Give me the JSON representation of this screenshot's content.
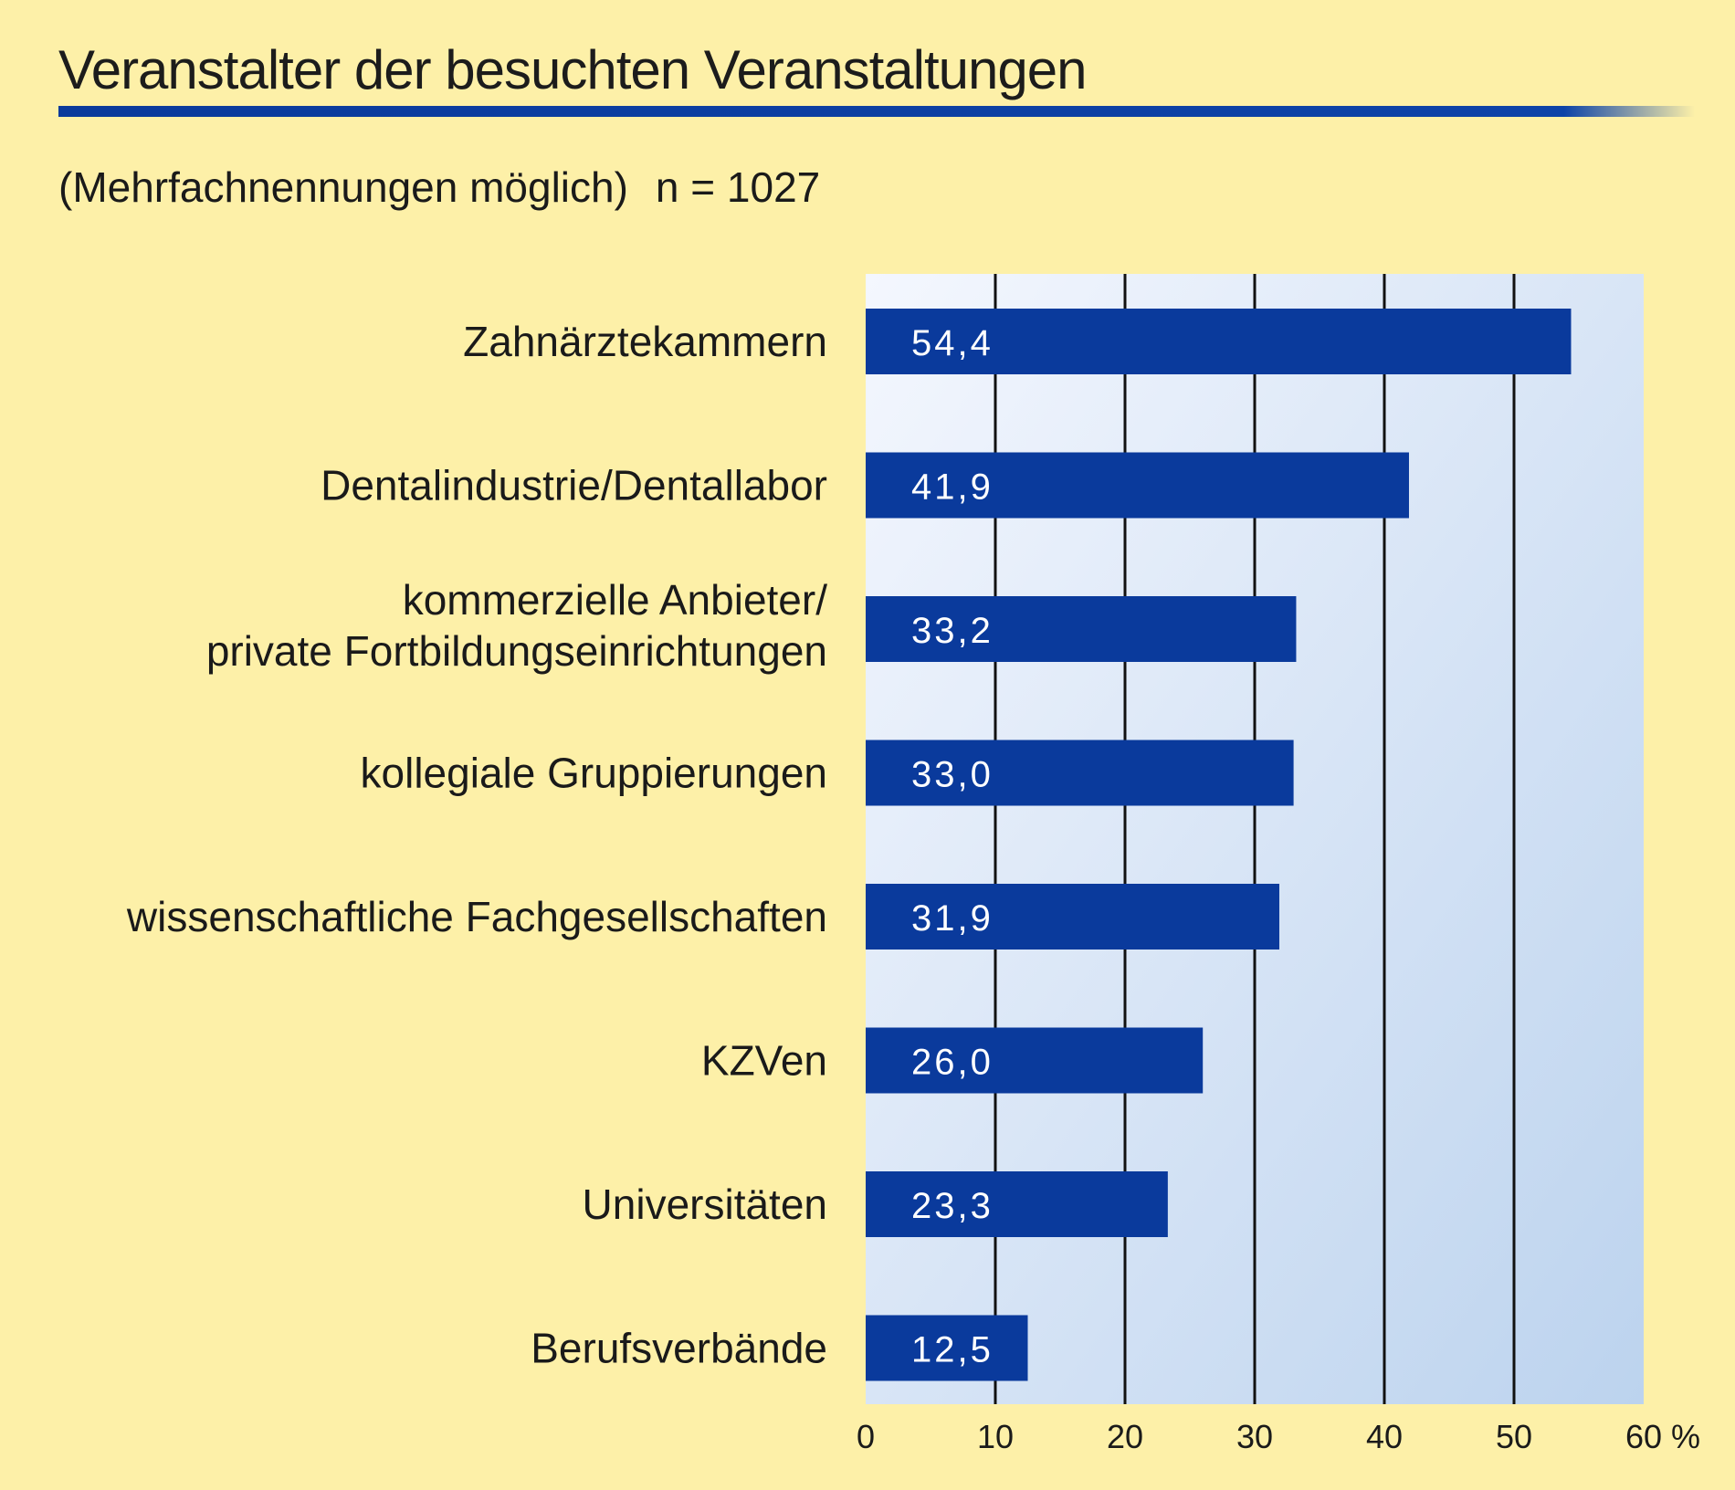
{
  "chart_data": {
    "type": "bar",
    "orientation": "horizontal",
    "title": "Veranstalter der besuchten Veranstaltungen",
    "subtitle": "(Mehrfachnennungen möglich)",
    "n_label": "n = 1027",
    "categories": [
      "Zahnärztekammern",
      "Dentalindustrie/Dentallabor",
      [
        "kommerzielle Anbieter/",
        "private Fortbildungseinrichtungen"
      ],
      "kollegiale Gruppierungen",
      "wissenschaftliche Fachgesellschaften",
      "KZVen",
      "Universitäten",
      "Berufsverbände"
    ],
    "values": [
      54.4,
      41.9,
      33.2,
      33.0,
      31.9,
      26.0,
      23.3,
      12.5
    ],
    "value_labels": [
      "54,4",
      "41,9",
      "33,2",
      "33,0",
      "31,9",
      "26,0",
      "23,3",
      "12,5"
    ],
    "xlim": [
      0,
      60
    ],
    "xticks": [
      0,
      10,
      20,
      30,
      40,
      50,
      60
    ],
    "xtick_labels": [
      "0",
      "10",
      "20",
      "30",
      "40",
      "50",
      "60"
    ],
    "xunit": "%",
    "grid": true,
    "legend": "none",
    "colors": {
      "bar": "#0a3a9c",
      "page_background": "#fdf0a8",
      "plot_background_start": "#f4f7fe",
      "plot_background_end": "#bcd3ee",
      "gridline": "#111111",
      "bar_label": "#ffffff",
      "title_rule": "#0a3a9c"
    }
  }
}
